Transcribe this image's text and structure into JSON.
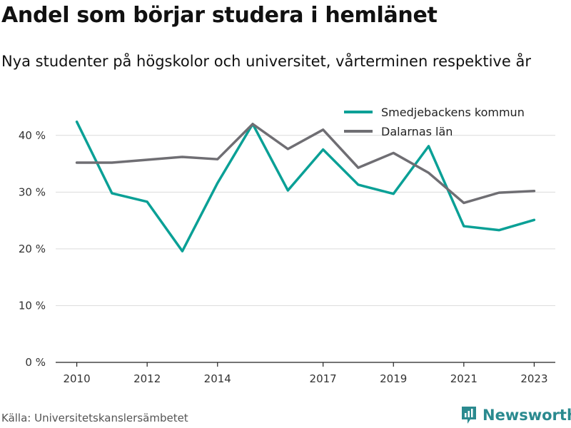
{
  "title": "Andel som börjar studera i hemlänet",
  "subtitle": "Nya studenter på högskolor och universitet, vårterminen respektive år",
  "source": "Källa: Universitetskanslersämbetet",
  "brand": {
    "name": "Newsworthy",
    "icon": "newsworthy-logo-icon",
    "color": "#2a8a8f"
  },
  "chart_data": {
    "type": "line",
    "title": "",
    "xlabel": "",
    "ylabel": "",
    "x": [
      2010,
      2011,
      2012,
      2013,
      2014,
      2015,
      2016,
      2017,
      2018,
      2019,
      2020,
      2021,
      2022,
      2023
    ],
    "x_ticks": [
      2010,
      2012,
      2014,
      2017,
      2019,
      2021,
      2023
    ],
    "xlim": [
      2009.4,
      2023.6
    ],
    "ylim": [
      0,
      45
    ],
    "y_ticks": [
      0,
      10,
      20,
      30,
      40
    ],
    "y_tick_labels": [
      "0 %",
      "10 %",
      "20 %",
      "30 %",
      "40 %"
    ],
    "grid": true,
    "legend_position": "top-right",
    "series": [
      {
        "name": "Smedjebackens kommun",
        "color": "#0aa096",
        "values": [
          42.4,
          29.8,
          28.3,
          19.6,
          31.6,
          42.0,
          30.3,
          37.5,
          31.3,
          29.7,
          38.1,
          24.0,
          23.3,
          25.1
        ]
      },
      {
        "name": "Dalarnas län",
        "color": "#6f6e73",
        "values": [
          35.2,
          35.2,
          35.7,
          36.2,
          35.8,
          42.0,
          37.6,
          41.0,
          34.3,
          36.9,
          33.4,
          28.1,
          29.9,
          30.2
        ]
      }
    ]
  }
}
